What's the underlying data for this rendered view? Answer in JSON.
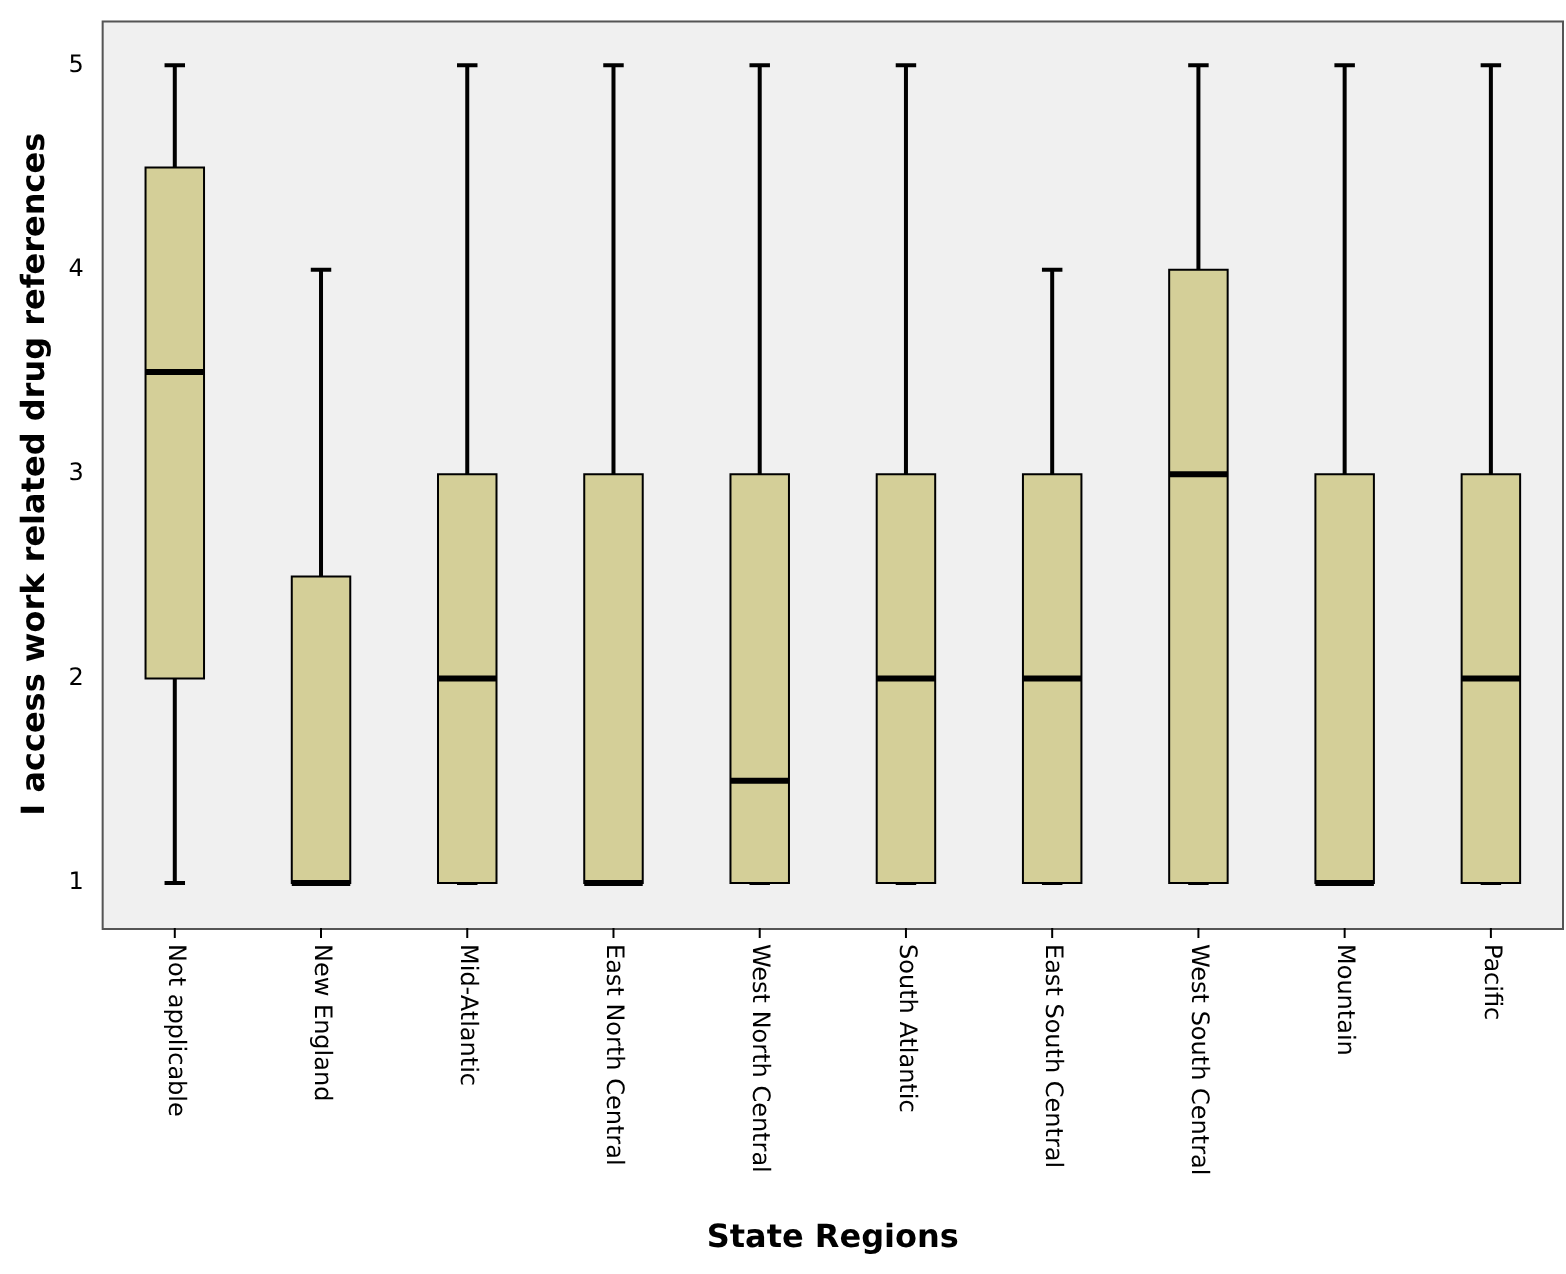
{
  "chart_data": {
    "type": "box",
    "xlabel": "State Regions",
    "ylabel": "I access work related drug references",
    "categories": [
      "Not applicable",
      "New England",
      "Mid-Atlantic",
      "East North Central",
      "West North Central",
      "South Atlantic",
      "East South Central",
      "West South Central",
      "Mountain",
      "Pacific"
    ],
    "boxes": [
      {
        "low": 1,
        "q1": 2,
        "median": 3.5,
        "q3": 4.5,
        "high": 5
      },
      {
        "low": 1,
        "q1": 1,
        "median": 1,
        "q3": 2.5,
        "high": 4
      },
      {
        "low": 1,
        "q1": 1,
        "median": 2,
        "q3": 3,
        "high": 5
      },
      {
        "low": 1,
        "q1": 1,
        "median": 1,
        "q3": 3,
        "high": 5
      },
      {
        "low": 1,
        "q1": 1,
        "median": 1.5,
        "q3": 3,
        "high": 5
      },
      {
        "low": 1,
        "q1": 1,
        "median": 2,
        "q3": 3,
        "high": 5
      },
      {
        "low": 1,
        "q1": 1,
        "median": 2,
        "q3": 3,
        "high": 4
      },
      {
        "low": 1,
        "q1": 1,
        "median": 3,
        "q3": 4,
        "high": 5
      },
      {
        "low": 1,
        "q1": 1,
        "median": 1,
        "q3": 3,
        "high": 5
      },
      {
        "low": 1,
        "q1": 1,
        "median": 2,
        "q3": 3,
        "high": 5
      }
    ],
    "color": "#d4cf98",
    "ylim": [
      0.78,
      5.22
    ],
    "yticks": [
      1,
      2,
      3,
      4,
      5
    ],
    "grid": false,
    "legend": false
  }
}
